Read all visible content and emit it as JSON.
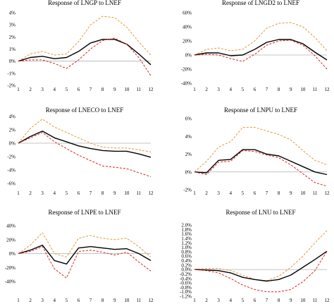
{
  "chart_data": [
    {
      "type": "line",
      "title": "Response of LNGP to LNEF",
      "x": [
        1,
        2,
        3,
        4,
        5,
        6,
        7,
        8,
        9,
        10,
        11,
        12
      ],
      "yticks": [
        -2,
        -1,
        0,
        1,
        2,
        3,
        4
      ],
      "ytick_labels": [
        "-2%",
        "-1%",
        "0%",
        "1%",
        "2%",
        "3%",
        "4%"
      ],
      "ylim": [
        -2,
        4
      ],
      "series": [
        {
          "role": "upper",
          "color": "#e8963a",
          "style": "dashed",
          "values": [
            0,
            0.6,
            0.8,
            0.5,
            0.6,
            1.6,
            3.0,
            3.7,
            3.6,
            2.8,
            1.6,
            0.5
          ]
        },
        {
          "role": "point",
          "color": "#000000",
          "style": "solid",
          "values": [
            0,
            0.3,
            0.4,
            0.2,
            0.3,
            0.8,
            1.5,
            1.8,
            1.8,
            1.4,
            0.6,
            -0.3
          ]
        },
        {
          "role": "lower",
          "color": "#e0211f",
          "style": "dashed",
          "values": [
            0,
            0.1,
            0.1,
            -0.2,
            -0.6,
            0.1,
            1.0,
            1.7,
            1.9,
            1.4,
            0.3,
            -1.2
          ]
        }
      ]
    },
    {
      "type": "line",
      "title": "Response of LNGD2 to LNEF",
      "x": [
        1,
        2,
        3,
        4,
        5,
        6,
        7,
        8,
        9,
        10,
        11,
        12
      ],
      "yticks": [
        -40,
        -20,
        0,
        20,
        40,
        60
      ],
      "ytick_labels": [
        "-40%",
        "-20%",
        "0%",
        "20%",
        "40%",
        "60%"
      ],
      "ylim": [
        -40,
        60
      ],
      "series": [
        {
          "role": "upper",
          "color": "#e8963a",
          "style": "dashed",
          "values": [
            0,
            8,
            10,
            6,
            8,
            20,
            38,
            45,
            46,
            40,
            25,
            6
          ]
        },
        {
          "role": "point",
          "color": "#000000",
          "style": "solid",
          "values": [
            0,
            3,
            3,
            -1,
            0,
            8,
            18,
            22,
            22,
            16,
            4,
            -7
          ]
        },
        {
          "role": "lower",
          "color": "#e0211f",
          "style": "dashed",
          "values": [
            0,
            1,
            0,
            -5,
            -9,
            1,
            14,
            20,
            21,
            14,
            -1,
            -20
          ]
        }
      ]
    },
    {
      "type": "line",
      "title": "Response of LNECO to LNEF",
      "x": [
        1,
        2,
        3,
        4,
        5,
        6,
        7,
        8,
        9,
        10,
        11,
        12
      ],
      "yticks": [
        -6,
        -4,
        -2,
        0,
        2,
        4
      ],
      "ytick_labels": [
        "-6%",
        "-4%",
        "-2%",
        "0%",
        "2%",
        "4%"
      ],
      "ylim": [
        -6,
        4
      ],
      "series": [
        {
          "role": "upper",
          "color": "#e8963a",
          "style": "dashed",
          "values": [
            0,
            2.2,
            3.6,
            2.4,
            1.6,
            0.8,
            0,
            -0.6,
            -0.7,
            -0.7,
            -1.0,
            -1.3
          ]
        },
        {
          "role": "point",
          "color": "#000000",
          "style": "solid",
          "values": [
            0,
            1.0,
            1.8,
            0.8,
            0.2,
            -0.4,
            -0.8,
            -1.1,
            -1.2,
            -1.2,
            -1.6,
            -2.1
          ]
        },
        {
          "role": "lower",
          "color": "#e0211f",
          "style": "dashed",
          "values": [
            0,
            0.8,
            1.6,
            0.2,
            -0.8,
            -1.8,
            -2.6,
            -3.4,
            -3.6,
            -3.8,
            -4.4,
            -5.0
          ]
        }
      ]
    },
    {
      "type": "line",
      "title": "Response of LNPU to LNEF",
      "x": [
        1,
        2,
        3,
        4,
        5,
        6,
        7,
        8,
        9,
        10,
        11,
        12
      ],
      "yticks": [
        -2,
        0,
        2,
        4,
        6
      ],
      "ytick_labels": [
        "-2%",
        "0%",
        "2%",
        "4%",
        "6%"
      ],
      "ylim": [
        -2,
        6
      ],
      "series": [
        {
          "role": "upper",
          "color": "#e8963a",
          "style": "dashed",
          "values": [
            0,
            1.2,
            2.8,
            3.4,
            5.0,
            5.0,
            4.6,
            4.2,
            3.6,
            2.4,
            1.3,
            0.8
          ]
        },
        {
          "role": "point",
          "color": "#000000",
          "style": "solid",
          "values": [
            0,
            -0.1,
            1.3,
            1.4,
            2.5,
            2.5,
            2.0,
            1.8,
            1.2,
            0.6,
            0,
            -0.3
          ]
        },
        {
          "role": "lower",
          "color": "#e0211f",
          "style": "dashed",
          "values": [
            0,
            -0.3,
            1.1,
            1.2,
            2.4,
            2.3,
            1.9,
            1.6,
            0.8,
            -0.2,
            -1.2,
            -1.6
          ]
        }
      ]
    },
    {
      "type": "line",
      "title": "Response of LNPE to LNEF",
      "x": [
        1,
        2,
        3,
        4,
        5,
        6,
        7,
        8,
        9,
        10,
        11,
        12
      ],
      "yticks": [
        -40,
        -20,
        0,
        20,
        40
      ],
      "ytick_labels": [
        "-40%",
        "-20%",
        "0%",
        "20%",
        "40%"
      ],
      "ylim": [
        -40,
        40
      ],
      "series": [
        {
          "role": "upper",
          "color": "#e8963a",
          "style": "dashed",
          "values": [
            0,
            12,
            30,
            0,
            -5,
            22,
            26,
            22,
            20,
            22,
            10,
            -5
          ]
        },
        {
          "role": "point",
          "color": "#000000",
          "style": "solid",
          "values": [
            0,
            5,
            12,
            -10,
            -15,
            8,
            10,
            8,
            6,
            7,
            0,
            -10
          ]
        },
        {
          "role": "lower",
          "color": "#e0211f",
          "style": "dashed",
          "values": [
            0,
            3,
            10,
            -22,
            -35,
            3,
            5,
            2,
            -2,
            2,
            -12,
            -25
          ]
        }
      ]
    },
    {
      "type": "line",
      "title": "Response of LNU to LNEF",
      "x": [
        1,
        2,
        3,
        4,
        5,
        6,
        7,
        8,
        9,
        10,
        11,
        12
      ],
      "yticks": [
        -1.2,
        -1.0,
        -0.8,
        -0.6,
        -0.4,
        -0.2,
        0.0,
        0.2,
        0.4,
        0.6,
        0.8,
        1.0,
        1.2,
        1.4,
        1.6,
        1.8,
        2.0
      ],
      "ytick_labels": [
        "-1.2%",
        "-1.0%",
        "-0.8%",
        "-0.6%",
        "-0.4%",
        "-0.2%",
        "0.0%",
        "0.2%",
        "0.4%",
        "0.6%",
        "0.8%",
        "1.0%",
        "1.2%",
        "1.4%",
        "1.6%",
        "1.8%",
        "2.0%"
      ],
      "ylim": [
        -1.2,
        2.0
      ],
      "series": [
        {
          "role": "upper",
          "color": "#e8963a",
          "style": "dashed",
          "values": [
            0,
            0.05,
            0.05,
            -0.05,
            -0.25,
            -0.45,
            -0.5,
            -0.3,
            0.1,
            0.6,
            1.2,
            1.75
          ]
        },
        {
          "role": "point",
          "color": "#000000",
          "style": "solid",
          "values": [
            0,
            -0.02,
            -0.05,
            -0.15,
            -0.35,
            -0.45,
            -0.52,
            -0.45,
            -0.25,
            0.1,
            0.45,
            0.82
          ]
        },
        {
          "role": "lower",
          "color": "#e0211f",
          "style": "dashed",
          "values": [
            0,
            -0.05,
            -0.15,
            -0.4,
            -0.7,
            -0.9,
            -1.0,
            -1.0,
            -0.9,
            -0.55,
            -0.05,
            0.82
          ]
        }
      ]
    }
  ]
}
